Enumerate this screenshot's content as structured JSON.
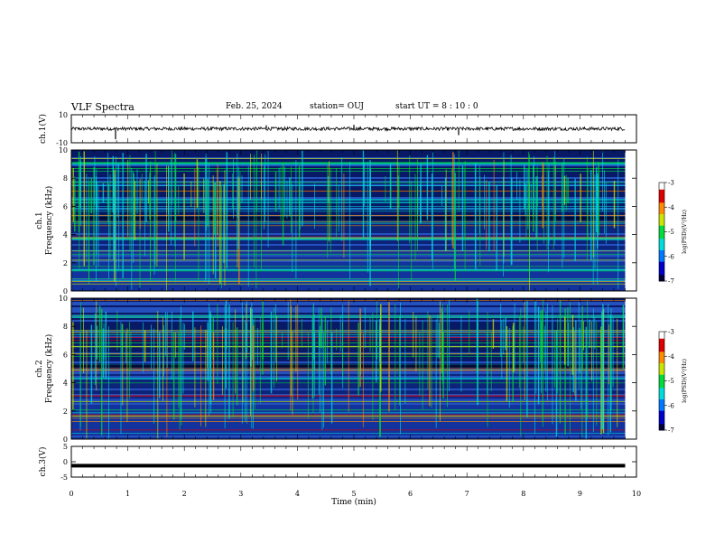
{
  "header": {
    "title": "VLF Spectra",
    "date": "Feb. 25, 2024",
    "station": "station= OUJ",
    "start_ut": "start  UT =   8  : 10 : 0"
  },
  "chart_data": [
    {
      "type": "line",
      "panel": "ch1-waveform",
      "ylabel": "ch.1(V)",
      "ylim": [
        -10,
        10
      ],
      "yticks": [
        "10",
        "-10"
      ],
      "baseline": 0,
      "noise_amplitude": 1.2
    },
    {
      "type": "heatmap",
      "panel": "ch1-spectrogram",
      "ylabel": "ch.1\nFrequency (kHz)",
      "ylabel_line1": "ch.1",
      "ylabel_line2": "Frequency (kHz)",
      "ylim": [
        0,
        10
      ],
      "yticks": [
        "0",
        "2",
        "4",
        "6",
        "8",
        "10"
      ],
      "colorbar": {
        "label": "log(PSD)(V²/Hz)",
        "range": [
          -7,
          -3
        ],
        "ticks": [
          "-3",
          "-4",
          "-5",
          "-6",
          "-7"
        ]
      }
    },
    {
      "type": "heatmap",
      "panel": "ch2-spectrogram",
      "ylabel": "ch.2\nFrequency (kHz)",
      "ylabel_line1": "ch.2",
      "ylabel_line2": "Frequency (kHz)",
      "ylim": [
        0,
        10
      ],
      "yticks": [
        "0",
        "2",
        "4",
        "6",
        "8",
        "10"
      ],
      "colorbar": {
        "label": "log(PSD)(V²/Hz)",
        "range": [
          -7,
          -3
        ],
        "ticks": [
          "-3",
          "-4",
          "-5",
          "-6",
          "-7"
        ]
      }
    },
    {
      "type": "line",
      "panel": "ch3-waveform",
      "ylabel": "ch.3(V)",
      "ylim": [
        -5,
        5
      ],
      "yticks": [
        "5",
        "0",
        "-5"
      ],
      "baseline": -1.3
    }
  ],
  "xaxis": {
    "label": "Time (min)",
    "range": [
      0,
      10
    ],
    "ticks": [
      "0",
      "1",
      "2",
      "3",
      "4",
      "5",
      "6",
      "7",
      "8",
      "9",
      "10"
    ],
    "data_end": 9.8
  },
  "colors": {
    "spectrogram_background": "#0a1a5c",
    "colormap": [
      "#00003c",
      "#0000c8",
      "#0078ff",
      "#00dcdc",
      "#00dc3c",
      "#c8e600",
      "#ff8c00",
      "#dc0000",
      "#ffffff"
    ]
  }
}
